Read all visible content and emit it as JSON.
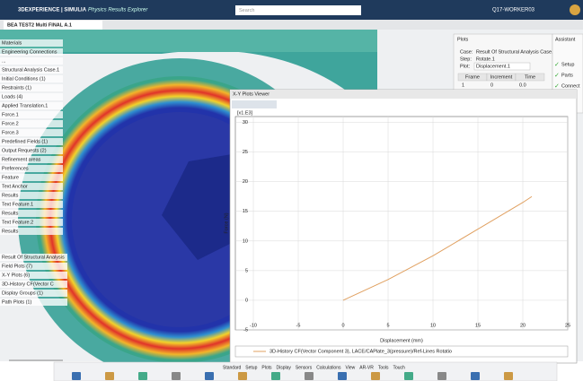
{
  "header": {
    "brand": "3DEXPERIENCE | SIMULIA",
    "app": "Physics Results Explorer",
    "search": "Search",
    "user": "Q17-WORKER03"
  },
  "tab": "BEA TEST2 Multi FINAL A.1",
  "tree_top": [
    "Materials",
    "Engineering Connections",
    "...",
    "Structural Analysis Case.1",
    "Initial Conditions (1)",
    "Restraints (1)",
    "Loads (4)",
    "Applied Translation.1",
    "Force.1",
    "Force.2",
    "Force.3",
    "Predefined Fields (1)",
    "Output Requests (2)",
    "Refinement areas",
    "Preferences",
    "Feature",
    "Text Anchor",
    "Results",
    "Text Feature.1",
    "Results",
    "Text Feature.2",
    "Results"
  ],
  "tree_bottom": [
    "Result Of Structural Analysis",
    "Field Plots (7)",
    "X-Y Plots (6)",
    "3D-History CF(Vector C",
    "Display Groups (1)",
    "Path Plots (1)"
  ],
  "plots_panel": {
    "title": "Plots",
    "case_label": "Case:",
    "case": "Result Of Structural Analysis Case.1",
    "step_label": "Step:",
    "step": "Rotate.1",
    "plot_label": "Plot:",
    "plot": "Displacement.1",
    "table": {
      "headers": [
        "Frame",
        "Increment",
        "Time"
      ],
      "rows": [
        [
          "1",
          "0",
          "0.0"
        ]
      ]
    }
  },
  "assistant": {
    "title": "Assistant",
    "items": [
      "Setup",
      "Parts",
      "Connect"
    ]
  },
  "xy_viewer": {
    "title": "X-Y Plots Viewer",
    "chart": {
      "type": "line",
      "y_scale": "[x1.E3]",
      "y_label": "Force (N)",
      "x_label": "Displacement (mm)",
      "x": [
        0,
        5,
        10,
        15,
        20,
        21
      ],
      "series": [
        {
          "name": "3D-History CF(Vector Component 3), LACE/CAPlate_3(pressure)/Ref-Lines Rotatio",
          "color": "#e0a060",
          "values": [
            0,
            3.5,
            7.5,
            12,
            16.5,
            17.5
          ]
        }
      ],
      "xlim": [
        -12,
        25
      ],
      "xticks": [
        -10,
        -5,
        0,
        5,
        10,
        15,
        20,
        25
      ],
      "ylim": [
        -5,
        31
      ],
      "yticks": [
        -5,
        0,
        5,
        10,
        15,
        20,
        25,
        30
      ],
      "grid": true
    }
  },
  "toolbar_tabs": [
    "Standard",
    "Setup",
    "Plots",
    "Display",
    "Sensors",
    "Calculations",
    "View",
    "AR-VR",
    "Tools",
    "Touch"
  ]
}
